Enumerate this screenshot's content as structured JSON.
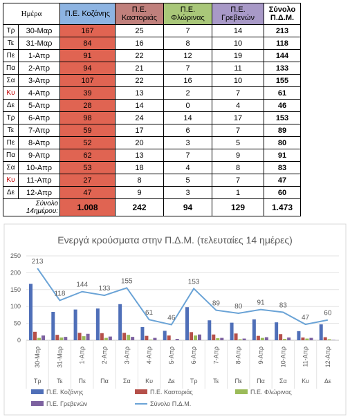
{
  "table": {
    "header": [
      "Ημέρα",
      "Π.Ε. Κοζάνης",
      "Π.Ε. Καστοριάς",
      "Π.Ε. Φλώρινας",
      "Π.Ε. Γρεβενών",
      "Σύνολο Π.Δ.Μ."
    ],
    "rows": [
      [
        "Τρ",
        "30-Μαρ",
        167,
        25,
        7,
        14,
        213
      ],
      [
        "Τε",
        "31-Μαρ",
        84,
        16,
        8,
        10,
        118
      ],
      [
        "Πε",
        "1-Απρ",
        91,
        22,
        12,
        19,
        144
      ],
      [
        "Πα",
        "2-Απρ",
        94,
        21,
        7,
        11,
        133
      ],
      [
        "Σα",
        "3-Απρ",
        107,
        22,
        16,
        10,
        155
      ],
      [
        "Κυ",
        "4-Απρ",
        39,
        13,
        2,
        7,
        61
      ],
      [
        "Δε",
        "5-Απρ",
        28,
        14,
        0,
        4,
        46
      ],
      [
        "Τρ",
        "6-Απρ",
        98,
        24,
        14,
        17,
        153
      ],
      [
        "Τε",
        "7-Απρ",
        59,
        17,
        6,
        7,
        89
      ],
      [
        "Πε",
        "8-Απρ",
        52,
        20,
        3,
        5,
        80
      ],
      [
        "Πα",
        "9-Απρ",
        62,
        13,
        7,
        9,
        91
      ],
      [
        "Σα",
        "10-Απρ",
        53,
        18,
        4,
        8,
        83
      ],
      [
        "Κυ",
        "11-Απρ",
        27,
        8,
        5,
        7,
        47
      ],
      [
        "Δε",
        "12-Απρ",
        47,
        9,
        3,
        1,
        60
      ]
    ],
    "total": {
      "label": "Σύνολο 14ημέρου:",
      "values": [
        "1.008",
        "242",
        "94",
        "129",
        "1.473"
      ]
    }
  },
  "chart_data": {
    "type": "bar",
    "title": "Ενεργά κρούσματα στην Π.Δ.Μ. (τελευταίες 14 ημέρες)",
    "categories": [
      "30-Μαρ",
      "31-Μαρ",
      "1-Απρ",
      "2-Απρ",
      "3-Απρ",
      "4-Απρ",
      "5-Απρ",
      "6-Απρ",
      "7-Απρ",
      "8-Απρ",
      "9-Απρ",
      "10-Απρ",
      "11-Απρ",
      "12-Απρ"
    ],
    "weekdays": [
      "Τρ",
      "Τε",
      "Πε",
      "Πα",
      "Σα",
      "Κυ",
      "Δε",
      "Τρ",
      "Τε",
      "Πε",
      "Πα",
      "Σα",
      "Κυ",
      "Δε"
    ],
    "ylim": [
      0,
      250
    ],
    "yticks": [
      0,
      50,
      100,
      150,
      200,
      250
    ],
    "grid": true,
    "series": [
      {
        "name": "Π.Ε. Κοζάνης",
        "color": "#4f6fb8",
        "type": "bar",
        "values": [
          167,
          84,
          91,
          94,
          107,
          39,
          28,
          98,
          59,
          52,
          62,
          53,
          27,
          47
        ]
      },
      {
        "name": "Π.Ε. Καστοριάς",
        "color": "#b5504a",
        "type": "bar",
        "values": [
          25,
          16,
          22,
          21,
          22,
          13,
          14,
          24,
          17,
          20,
          13,
          18,
          8,
          9
        ]
      },
      {
        "name": "Π.Ε. Φλώρινας",
        "color": "#9bbb59",
        "type": "bar",
        "values": [
          7,
          8,
          12,
          7,
          16,
          2,
          0,
          14,
          6,
          3,
          7,
          4,
          5,
          3
        ]
      },
      {
        "name": "Π.Ε. Γρεβενών",
        "color": "#7d62a0",
        "type": "bar",
        "values": [
          14,
          10,
          19,
          11,
          10,
          7,
          4,
          17,
          7,
          5,
          9,
          8,
          7,
          1
        ]
      },
      {
        "name": "Σύνολο Π.Δ.Μ.",
        "color": "#6aa3d6",
        "type": "line",
        "values": [
          213,
          118,
          144,
          133,
          155,
          61,
          46,
          153,
          89,
          80,
          91,
          83,
          47,
          60
        ]
      }
    ]
  }
}
